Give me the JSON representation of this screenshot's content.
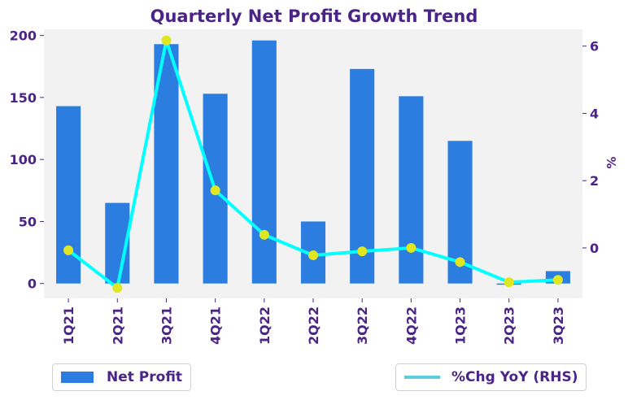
{
  "chart_data": {
    "type": "bar",
    "title": "Quarterly Net Profit Growth Trend",
    "categories": [
      "1Q21",
      "2Q21",
      "3Q21",
      "4Q21",
      "1Q22",
      "2Q22",
      "3Q22",
      "4Q22",
      "1Q23",
      "2Q23",
      "3Q23"
    ],
    "series": [
      {
        "name": "Net Profit",
        "type": "bar",
        "axis": "left",
        "color": "#2b7de0",
        "values": [
          143,
          65,
          193,
          153,
          196,
          50,
          173,
          151,
          115,
          -1,
          10
        ]
      },
      {
        "name": "%Chg YoY (RHS)",
        "type": "line",
        "axis": "right",
        "color": "#00ffff",
        "marker_color": "#e0e620",
        "legend_color": "#5bcfdc",
        "values": [
          -0.07,
          -1.19,
          6.17,
          1.71,
          0.39,
          -0.22,
          -0.1,
          0.0,
          -0.42,
          -1.02,
          -0.95
        ]
      }
    ],
    "xlabel": "",
    "ylabel": "",
    "ylabel_right": "%",
    "ylim": [
      -12,
      205
    ],
    "ylim_right": [
      -1.5,
      6.5
    ],
    "yticks": [
      0,
      50,
      100,
      150,
      200
    ],
    "yticks_right": [
      0,
      2,
      4,
      6
    ],
    "grid": false,
    "background": "#f2f2f2",
    "legend": [
      {
        "label": "Net Profit",
        "placement": "bottom-left"
      },
      {
        "label": "%Chg YoY (RHS)",
        "placement": "bottom-right"
      }
    ]
  }
}
